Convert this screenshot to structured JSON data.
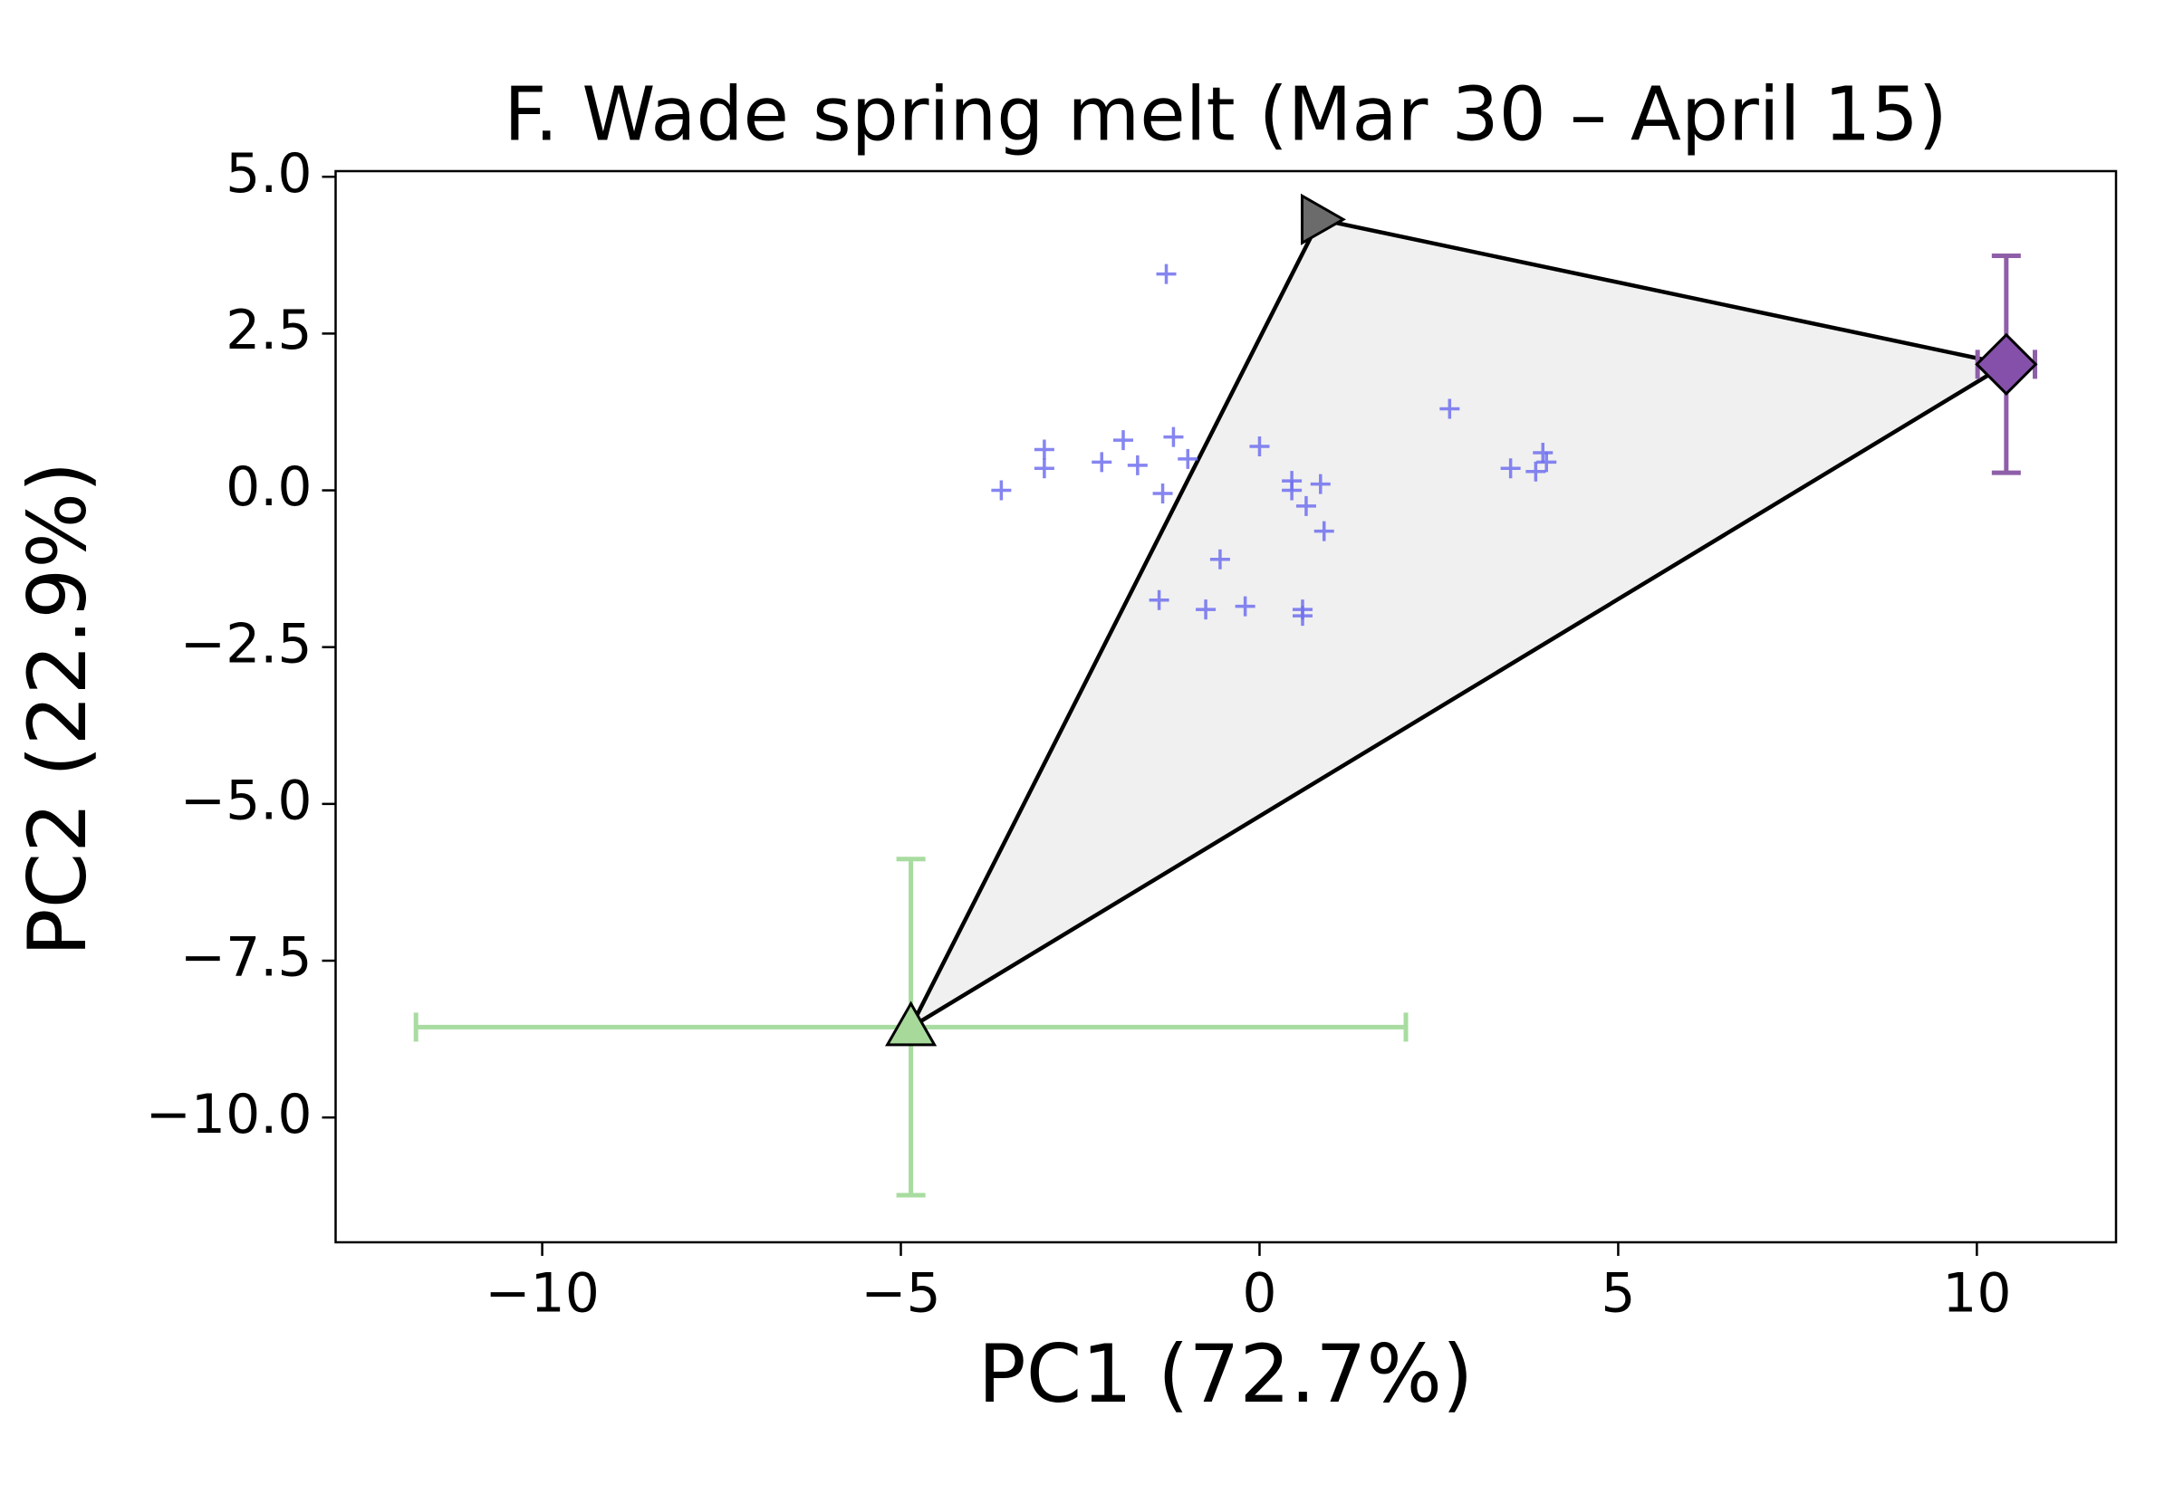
{
  "chart_data": {
    "type": "scatter",
    "title": "F. Wade spring melt (Mar 30 – April 15)",
    "xlabel": "PC1 (72.7%)",
    "ylabel": "PC2 (22.9%)",
    "xlim": [
      -12.88,
      11.94
    ],
    "ylim": [
      -11.99,
      5.09
    ],
    "xticks": [
      {
        "value": -10,
        "label": "−10"
      },
      {
        "value": -5,
        "label": "−5"
      },
      0,
      5,
      10
    ],
    "yticks": [
      {
        "value": 5.0,
        "label": "5.0"
      },
      {
        "value": 2.5,
        "label": "2.5"
      },
      {
        "value": 0.0,
        "label": "0.0"
      },
      {
        "value": -2.5,
        "label": "−2.5"
      },
      {
        "value": -5.0,
        "label": "−5.0"
      },
      {
        "value": -7.5,
        "label": "−7.5"
      },
      {
        "value": -10.0,
        "label": "−10.0"
      }
    ],
    "grid": false,
    "points": {
      "color": "#7070ee",
      "marker": "plus",
      "x": [
        -1.3,
        2.65,
        -3.0,
        -3.0,
        -3.6,
        -1.9,
        -1.2,
        -2.2,
        -1.7,
        -1.0,
        -1.35,
        0.0,
        0.45,
        0.45,
        0.85,
        0.65,
        0.9,
        3.5,
        3.85,
        3.95,
        4.0,
        -0.55,
        -1.4,
        -0.75,
        -0.2,
        0.6,
        0.6
      ],
      "y": [
        3.45,
        1.3,
        0.65,
        0.35,
        0.0,
        0.8,
        0.85,
        0.45,
        0.4,
        0.5,
        -0.05,
        0.7,
        0.15,
        0.0,
        0.1,
        -0.25,
        -0.65,
        0.35,
        0.3,
        0.6,
        0.45,
        -1.1,
        -1.75,
        -1.9,
        -1.85,
        -1.9,
        -2.0
      ]
    },
    "hull_color": "#f0f0f0",
    "end_members": [
      {
        "marker": "triangle-up",
        "color": "#a6d99a",
        "error_color": "#a8dca0",
        "x": -4.86,
        "y": -8.56,
        "xerr": 6.9,
        "yerr": 2.68
      },
      {
        "marker": "triangle-right",
        "color": "#6b6b6b",
        "error_color": "#6b6b6b",
        "x": 0.84,
        "y": 4.32,
        "xerr": 0,
        "yerr": 0
      },
      {
        "marker": "diamond",
        "color": "#8550aa",
        "error_color": "#8e5fa8",
        "x": 10.41,
        "y": 2.01,
        "xerr": 0.4,
        "yerr": 1.73
      }
    ]
  }
}
